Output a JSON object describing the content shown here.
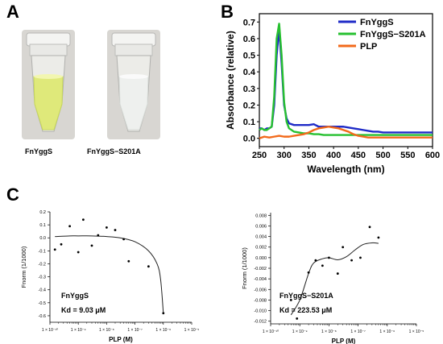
{
  "panels": {
    "a": {
      "label": "A",
      "tubes": [
        {
          "caption": "FnYggS",
          "liquid_color": "#dfe97a",
          "liquid_edge": "#c8d85a"
        },
        {
          "caption": "FnYggS−S201A",
          "liquid_color": "#eef0ee",
          "liquid_edge": "#d8dcd8"
        }
      ]
    },
    "b": {
      "label": "B"
    },
    "c": {
      "label": "C"
    }
  },
  "chart_data": [
    {
      "type": "line",
      "panel": "B",
      "title": "",
      "xlabel": "Wavelength (nm)",
      "ylabel": "Absorbance (relative)",
      "xlim": [
        250,
        600
      ],
      "ylim": [
        -0.05,
        0.75
      ],
      "xticks": [
        "250",
        "300",
        "350",
        "400",
        "450",
        "500",
        "550",
        "600"
      ],
      "yticks": [
        "0.0",
        "0.1",
        "0.2",
        "0.3",
        "0.4",
        "0.5",
        "0.6",
        "0.7"
      ],
      "legend_position": "top-right",
      "series": [
        {
          "name": "FnYggS",
          "color": "#1f2bc7",
          "x": [
            250,
            255,
            260,
            265,
            270,
            275,
            280,
            285,
            290,
            295,
            300,
            305,
            310,
            320,
            330,
            340,
            350,
            360,
            370,
            380,
            390,
            400,
            410,
            420,
            430,
            440,
            450,
            460,
            470,
            480,
            490,
            500,
            520,
            540,
            560,
            580,
            600
          ],
          "y": [
            0.06,
            0.06,
            0.05,
            0.06,
            0.06,
            0.07,
            0.2,
            0.5,
            0.66,
            0.45,
            0.2,
            0.12,
            0.09,
            0.08,
            0.08,
            0.08,
            0.08,
            0.085,
            0.07,
            0.07,
            0.07,
            0.07,
            0.07,
            0.07,
            0.065,
            0.06,
            0.055,
            0.05,
            0.045,
            0.04,
            0.04,
            0.035,
            0.035,
            0.035,
            0.035,
            0.035,
            0.035
          ]
        },
        {
          "name": "FnYggS−S201A",
          "color": "#27c030",
          "x": [
            250,
            255,
            260,
            265,
            270,
            275,
            280,
            285,
            290,
            295,
            300,
            305,
            310,
            320,
            330,
            340,
            350,
            360,
            370,
            380,
            390,
            400,
            420,
            440,
            460,
            480,
            500,
            520,
            540,
            560,
            580,
            600
          ],
          "y": [
            0.05,
            0.06,
            0.05,
            0.05,
            0.06,
            0.07,
            0.25,
            0.6,
            0.69,
            0.5,
            0.22,
            0.1,
            0.06,
            0.04,
            0.035,
            0.03,
            0.03,
            0.025,
            0.025,
            0.02,
            0.02,
            0.02,
            0.02,
            0.02,
            0.02,
            0.02,
            0.02,
            0.02,
            0.02,
            0.02,
            0.02,
            0.02
          ]
        },
        {
          "name": "PLP",
          "color": "#f26a1b",
          "x": [
            250,
            260,
            270,
            280,
            290,
            300,
            310,
            320,
            330,
            340,
            350,
            360,
            370,
            380,
            390,
            400,
            410,
            420,
            430,
            440,
            450,
            460,
            470,
            480,
            500,
            520,
            540,
            560,
            580,
            600
          ],
          "y": [
            0.0,
            0.01,
            0.005,
            0.01,
            0.015,
            0.01,
            0.01,
            0.015,
            0.02,
            0.025,
            0.035,
            0.05,
            0.06,
            0.065,
            0.07,
            0.065,
            0.06,
            0.05,
            0.04,
            0.025,
            0.015,
            0.01,
            0.005,
            0.005,
            0.005,
            0.005,
            0.005,
            0.005,
            0.005,
            0.005
          ]
        }
      ]
    },
    {
      "type": "scatter",
      "panel": "C-left",
      "xlabel": "PLP (M)",
      "ylabel": "Fnorm (1/1000)",
      "xscale": "log",
      "xlim": [
        1e-10,
        1e-05
      ],
      "ylim": [
        -0.65,
        0.2
      ],
      "xticks": [
        "1 × 10⁻¹⁰",
        "1 × 10⁻⁹",
        "1 × 10⁻⁸",
        "1 × 10⁻⁷",
        "1 × 10⁻⁶",
        "1 × 10⁻⁵"
      ],
      "yticks": [
        "0.2",
        "0.1",
        "0.0",
        "-0.1",
        "-0.2",
        "-0.3",
        "-0.4",
        "-0.5",
        "-0.6"
      ],
      "annotation_name": "FnYggS",
      "annotation_kd": "Kd = 9.03 μM",
      "points": [
        [
          1.5e-10,
          -0.09
        ],
        [
          2.5e-10,
          -0.05
        ],
        [
          5e-10,
          0.09
        ],
        [
          1e-09,
          -0.11
        ],
        [
          1.5e-09,
          0.14
        ],
        [
          3e-09,
          -0.06
        ],
        [
          5e-09,
          0.02
        ],
        [
          1e-08,
          0.08
        ],
        [
          2e-08,
          0.06
        ],
        [
          4e-08,
          -0.01
        ],
        [
          6e-08,
          -0.18
        ],
        [
          3e-07,
          -0.22
        ],
        [
          1e-06,
          -0.58
        ]
      ],
      "fit": [
        [
          1.5e-10,
          0.01
        ],
        [
          5e-10,
          0.015
        ],
        [
          1e-09,
          0.015
        ],
        [
          3e-09,
          0.015
        ],
        [
          1e-08,
          0.01
        ],
        [
          3e-08,
          0.0
        ],
        [
          1e-07,
          -0.03
        ],
        [
          3e-07,
          -0.1
        ],
        [
          6e-07,
          -0.2
        ],
        [
          8e-07,
          -0.32
        ],
        [
          1e-06,
          -0.58
        ]
      ]
    },
    {
      "type": "scatter",
      "panel": "C-right",
      "xlabel": "PLP (M)",
      "ylabel": "Fnorm (1/1000)",
      "xscale": "log",
      "xlim": [
        1e-10,
        1e-05
      ],
      "ylim": [
        -0.0125,
        0.0085
      ],
      "xticks": [
        "1 × 10⁻¹⁰",
        "1 × 10⁻⁹",
        "1 × 10⁻⁸",
        "1 × 10⁻⁷",
        "1 × 10⁻⁶",
        "1 × 10⁻⁵"
      ],
      "yticks": [
        "0.008",
        "0.006",
        "0.004",
        "0.002",
        "0.000",
        "-0.002",
        "-0.004",
        "-0.006",
        "-0.008",
        "-0.010",
        "-0.012"
      ],
      "annotation_name": "FnYggS−S201A",
      "annotation_kd": "Kd = 223.53 μM",
      "points": [
        [
          5e-10,
          -0.008
        ],
        [
          8e-10,
          -0.0115
        ],
        [
          2e-09,
          -0.0028
        ],
        [
          3.5e-09,
          -0.0005
        ],
        [
          6e-09,
          -0.0015
        ],
        [
          1e-08,
          0.0
        ],
        [
          2e-08,
          -0.003
        ],
        [
          3e-08,
          0.002
        ],
        [
          6e-08,
          -0.0005
        ],
        [
          1.2e-07,
          0.0
        ],
        [
          2.5e-07,
          0.0058
        ],
        [
          5e-07,
          0.0038
        ]
      ],
      "fit": [
        [
          5e-10,
          -0.0108
        ],
        [
          1e-09,
          -0.008
        ],
        [
          2e-09,
          -0.003
        ],
        [
          3e-09,
          -0.001
        ],
        [
          6e-09,
          -0.0002
        ],
        [
          1e-08,
          0.0
        ],
        [
          2e-08,
          -0.0004
        ],
        [
          4e-08,
          0.0002
        ],
        [
          8e-08,
          0.0015
        ],
        [
          1.5e-07,
          0.0025
        ],
        [
          3e-07,
          0.0028
        ],
        [
          5e-07,
          0.0027
        ]
      ]
    }
  ]
}
